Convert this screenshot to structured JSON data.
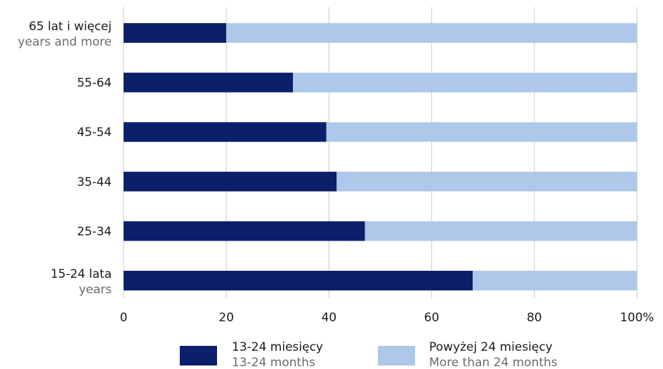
{
  "chart_data": {
    "type": "bar",
    "orientation": "horizontal",
    "stacked": true,
    "categories": [
      {
        "label": "65 lat i więcej",
        "sublabel": "years and more"
      },
      {
        "label": "55-64",
        "sublabel": ""
      },
      {
        "label": "45-54",
        "sublabel": ""
      },
      {
        "label": "35-44",
        "sublabel": ""
      },
      {
        "label": "25-34",
        "sublabel": ""
      },
      {
        "label": "15-24 lata",
        "sublabel": "years"
      }
    ],
    "series": [
      {
        "name": "13-24 miesięcy",
        "name_en": "13-24 months",
        "color": "#0b1f6b",
        "values": [
          20,
          33,
          39.5,
          41.5,
          47,
          68
        ]
      },
      {
        "name": "Powyżej 24 miesięcy",
        "name_en": "More than 24 months",
        "color": "#adc8e8",
        "values": [
          80,
          67,
          60.5,
          58.5,
          53,
          32
        ]
      }
    ],
    "x_ticks": [
      "0",
      "20",
      "40",
      "60",
      "80",
      "100%"
    ],
    "xlim": [
      0,
      100
    ],
    "grid": true,
    "legend_position": "bottom"
  }
}
